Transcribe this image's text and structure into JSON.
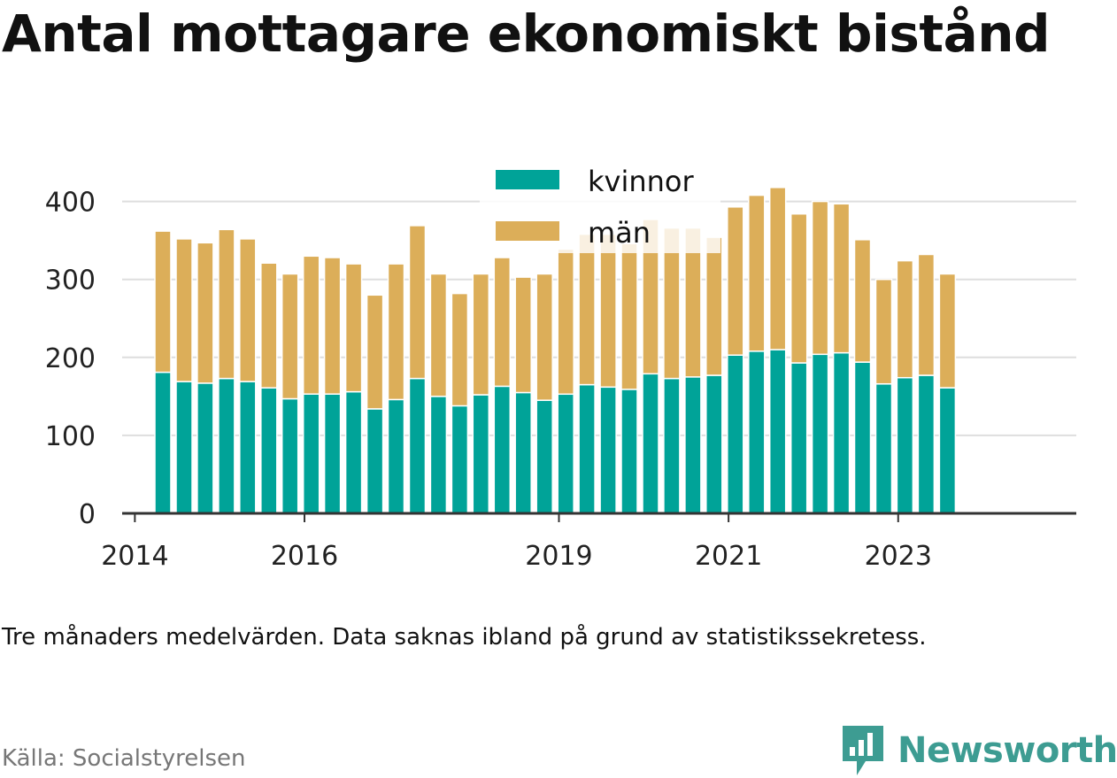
{
  "title": "Antal mottagare ekonomiskt bistånd",
  "note": "Tre månaders medelvärden. Data saknas ibland på grund av statistikssekretess.",
  "source": "Källa: Socialstyrelsen",
  "brand": {
    "name": "Newsworthy",
    "color": "#3d9c92",
    "icon": "bar-chart-logo-icon"
  },
  "chart_data": {
    "type": "bar",
    "stacked": true,
    "title": "Antal mottagare ekonomiskt bistånd",
    "xlabel": "",
    "ylabel": "",
    "ylim": [
      0,
      420
    ],
    "yticks": [
      0,
      100,
      200,
      300,
      400
    ],
    "xlim": [
      2013.85,
      2025.1
    ],
    "xticks": [
      {
        "value": 2014.0,
        "label": "2014"
      },
      {
        "value": 2016.0,
        "label": "2016"
      },
      {
        "value": 2019.0,
        "label": "2019"
      },
      {
        "value": 2021.0,
        "label": "2021"
      },
      {
        "value": 2023.0,
        "label": "2023"
      }
    ],
    "grid": true,
    "legend_position": "top-center",
    "x": [
      2014.33,
      2014.58,
      2014.83,
      2015.08,
      2015.33,
      2015.58,
      2015.83,
      2016.08,
      2016.33,
      2016.58,
      2016.83,
      2017.08,
      2017.33,
      2017.58,
      2017.83,
      2018.08,
      2018.33,
      2018.58,
      2018.83,
      2019.08,
      2019.33,
      2019.58,
      2019.83,
      2020.08,
      2020.33,
      2020.58,
      2020.83,
      2021.08,
      2021.33,
      2021.58,
      2021.83,
      2022.08,
      2022.33,
      2022.58,
      2022.83,
      2023.08,
      2023.33,
      2023.58
    ],
    "series": [
      {
        "name": "kvinnor",
        "color": "#00a398",
        "values": [
          181,
          169,
          167,
          173,
          169,
          161,
          147,
          153,
          153,
          156,
          134,
          146,
          173,
          150,
          138,
          152,
          163,
          155,
          145,
          153,
          165,
          162,
          159,
          179,
          173,
          175,
          177,
          203,
          208,
          210,
          193,
          204,
          206,
          194,
          166,
          174,
          177,
          161
        ]
      },
      {
        "name": "män",
        "color": "#dcae59",
        "values": [
          181,
          183,
          180,
          191,
          183,
          160,
          160,
          177,
          175,
          164,
          146,
          174,
          196,
          157,
          144,
          155,
          165,
          148,
          162,
          186,
          193,
          196,
          187,
          198,
          193,
          191,
          177,
          190,
          200,
          208,
          191,
          196,
          191,
          157,
          134,
          150,
          155,
          146
        ]
      }
    ]
  }
}
